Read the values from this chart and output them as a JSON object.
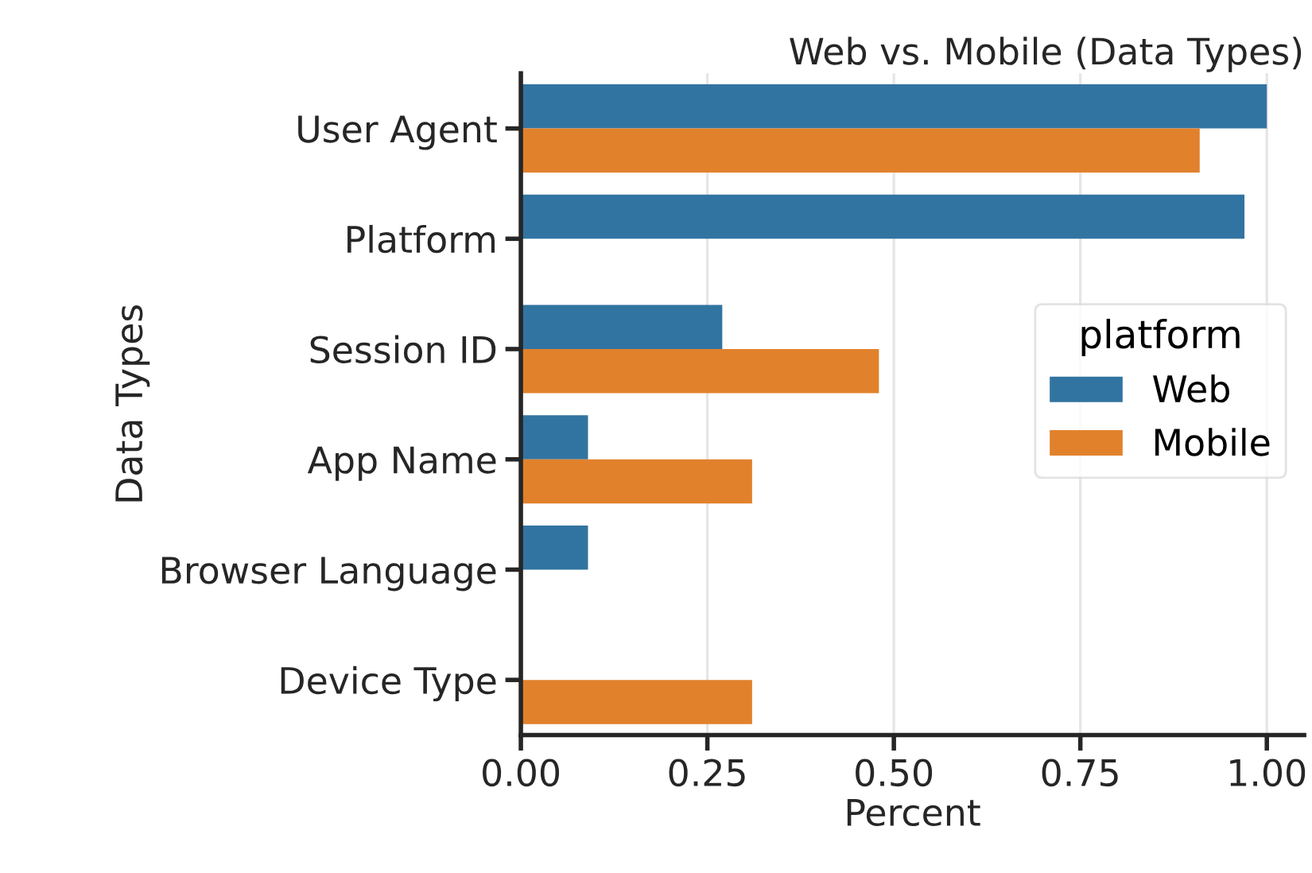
{
  "chart_data": {
    "type": "bar",
    "orientation": "horizontal",
    "title": "Web vs. Mobile (Data Types)",
    "xlabel": "Percent",
    "ylabel": "Data Types",
    "legend_title": "platform",
    "categories": [
      "User Agent",
      "Platform",
      "Session ID",
      "App Name",
      "Browser Language",
      "Device Type"
    ],
    "series": [
      {
        "name": "Web",
        "color": "#3274a1",
        "values": [
          1.0,
          0.97,
          0.27,
          0.09,
          0.09,
          null
        ]
      },
      {
        "name": "Mobile",
        "color": "#e1812c",
        "values": [
          0.91,
          null,
          0.48,
          0.31,
          null,
          0.31
        ]
      }
    ],
    "xlim": [
      0,
      1.05
    ],
    "xticks": [
      {
        "value": 0,
        "label": "0.00"
      },
      {
        "value": 0.25,
        "label": "0.25"
      },
      {
        "value": 0.5,
        "label": "0.50"
      },
      {
        "value": 0.75,
        "label": "0.75"
      },
      {
        "value": 1.0,
        "label": "1.00"
      }
    ],
    "grid": "x",
    "legend": "right"
  }
}
